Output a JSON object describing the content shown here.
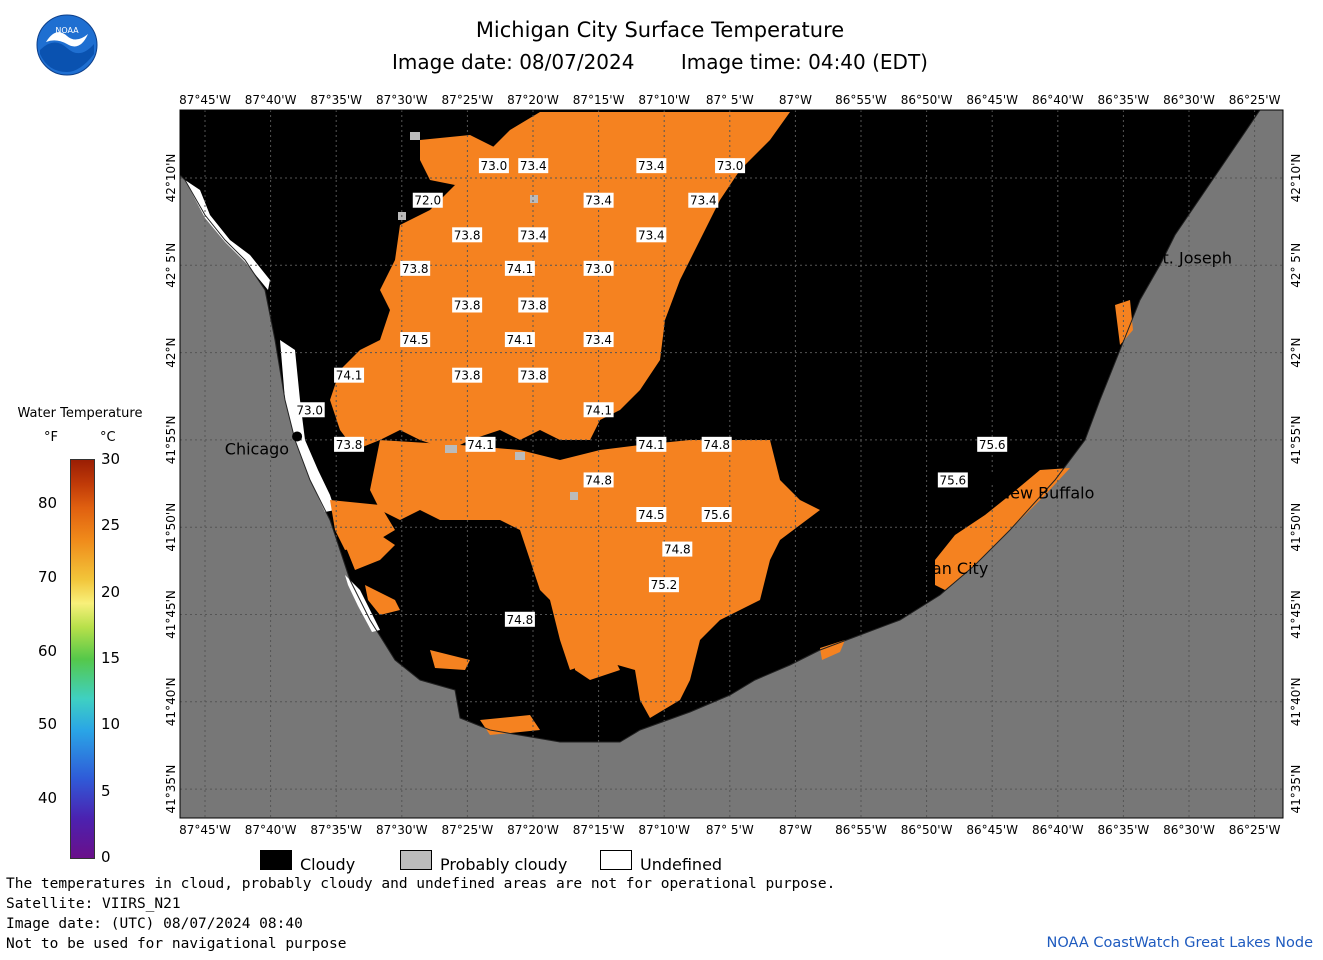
{
  "header": {
    "title": "Michigan City Surface Temperature",
    "image_date": "Image date: 08/07/2024",
    "image_time": "Image time: 04:40 (EDT)",
    "logo_text": "NOAA"
  },
  "axes": {
    "top_longitudes": [
      "87°45'W",
      "87°40'W",
      "87°35'W",
      "87°30'W",
      "87°25'W",
      "87°20'W",
      "87°15'W",
      "87°10'W",
      "87° 5'W",
      "87°W",
      "86°55'W",
      "86°50'W",
      "86°45'W",
      "86°40'W",
      "86°35'W",
      "86°30'W",
      "86°25'W"
    ],
    "bottom_longitudes": [
      "87°45'W",
      "87°40'W",
      "87°35'W",
      "87°30'W",
      "87°25'W",
      "87°20'W",
      "87°15'W",
      "87°10'W",
      "87° 5'W",
      "87°W",
      "86°55'W",
      "86°50'W",
      "86°45'W",
      "86°40'W",
      "86°35'W",
      "86°30'W",
      "86°25'W"
    ],
    "latitudes": [
      "42°10'N",
      "42° 5'N",
      "42°N",
      "41°55'N",
      "41°50'N",
      "41°45'N",
      "41°40'N",
      "41°35'N"
    ]
  },
  "temperature_labels": [
    {
      "text": "73.0",
      "lon": -87.383,
      "lat": 42.178
    },
    {
      "text": "73.4",
      "lon": -87.333,
      "lat": 42.178
    },
    {
      "text": "73.4",
      "lon": -87.183,
      "lat": 42.178
    },
    {
      "text": "73.0",
      "lon": -87.083,
      "lat": 42.178
    },
    {
      "text": "72.0",
      "lon": -87.467,
      "lat": 42.145
    },
    {
      "text": "73.4",
      "lon": -87.25,
      "lat": 42.145
    },
    {
      "text": "73.4",
      "lon": -87.117,
      "lat": 42.145
    },
    {
      "text": "73.8",
      "lon": -87.417,
      "lat": 42.112
    },
    {
      "text": "73.4",
      "lon": -87.333,
      "lat": 42.112
    },
    {
      "text": "73.4",
      "lon": -87.183,
      "lat": 42.112
    },
    {
      "text": "73.8",
      "lon": -87.483,
      "lat": 42.08
    },
    {
      "text": "74.1",
      "lon": -87.35,
      "lat": 42.08
    },
    {
      "text": "73.0",
      "lon": -87.25,
      "lat": 42.08
    },
    {
      "text": "73.8",
      "lon": -87.417,
      "lat": 42.045
    },
    {
      "text": "73.8",
      "lon": -87.333,
      "lat": 42.045
    },
    {
      "text": "74.5",
      "lon": -87.483,
      "lat": 42.012
    },
    {
      "text": "74.1",
      "lon": -87.35,
      "lat": 42.012
    },
    {
      "text": "73.4",
      "lon": -87.25,
      "lat": 42.012
    },
    {
      "text": "74.1",
      "lon": -87.567,
      "lat": 41.978
    },
    {
      "text": "73.8",
      "lon": -87.417,
      "lat": 41.978
    },
    {
      "text": "73.8",
      "lon": -87.333,
      "lat": 41.978
    },
    {
      "text": "73.0",
      "lon": -87.617,
      "lat": 41.945
    },
    {
      "text": "74.1",
      "lon": -87.25,
      "lat": 41.945
    },
    {
      "text": "73.8",
      "lon": -87.567,
      "lat": 41.912
    },
    {
      "text": "74.1",
      "lon": -87.4,
      "lat": 41.912
    },
    {
      "text": "74.1",
      "lon": -87.183,
      "lat": 41.912
    },
    {
      "text": "74.8",
      "lon": -87.1,
      "lat": 41.912
    },
    {
      "text": "75.6",
      "lon": -86.75,
      "lat": 41.912
    },
    {
      "text": "74.8",
      "lon": -87.25,
      "lat": 41.878
    },
    {
      "text": "75.6",
      "lon": -86.8,
      "lat": 41.878
    },
    {
      "text": "74.5",
      "lon": -87.183,
      "lat": 41.845
    },
    {
      "text": "75.6",
      "lon": -87.1,
      "lat": 41.845
    },
    {
      "text": "74.8",
      "lon": -87.15,
      "lat": 41.812
    },
    {
      "text": "75.2",
      "lon": -87.167,
      "lat": 41.778
    },
    {
      "text": "74.8",
      "lon": -87.35,
      "lat": 41.745
    }
  ],
  "cities": [
    {
      "name": "Chicago",
      "lon": -87.633,
      "lat": 41.92
    },
    {
      "name": "Michigan City",
      "lon": -86.9,
      "lat": 41.808
    },
    {
      "name": "New Buffalo",
      "lon": -86.75,
      "lat": 41.88
    },
    {
      "name": "St. Joseph",
      "lon": -86.53,
      "lat": 42.09
    }
  ],
  "legend": {
    "title": "Water Temperature",
    "unit_f": "°F",
    "unit_c": "°C",
    "f_ticks": [
      {
        "v": "80",
        "f": 80
      },
      {
        "v": "70",
        "f": 70
      },
      {
        "v": "60",
        "f": 60
      },
      {
        "v": "50",
        "f": 50
      },
      {
        "v": "40",
        "f": 40
      }
    ],
    "c_ticks": [
      {
        "v": "30",
        "c": 30
      },
      {
        "v": "25",
        "c": 25
      },
      {
        "v": "20",
        "c": 20
      },
      {
        "v": "15",
        "c": 15
      },
      {
        "v": "10",
        "c": 10
      },
      {
        "v": "5",
        "c": 5
      },
      {
        "v": "0",
        "c": 0
      }
    ],
    "scale_min_c": 0,
    "scale_max_c": 30
  },
  "key": {
    "cloudy": "Cloudy",
    "probably_cloudy": "Probably cloudy",
    "undefined": "Undefined"
  },
  "footer": {
    "disclaimer": "The temperatures in cloud, probably cloudy and undefined areas are not for operational purpose.",
    "satellite": "Satellite: VIIRS_N21",
    "utc_date": "Image date: (UTC) 08/07/2024  08:40",
    "nav_warning": "Not to be used for navigational purpose",
    "credit": "NOAA CoastWatch Great Lakes Node"
  },
  "colors": {
    "land": "#777777",
    "cloud": "#000000",
    "warm_water": "#f58220",
    "probably_cloudy": "#bbbbbb",
    "undefined": "#ffffff",
    "credit_text": "#1f5bbf"
  }
}
